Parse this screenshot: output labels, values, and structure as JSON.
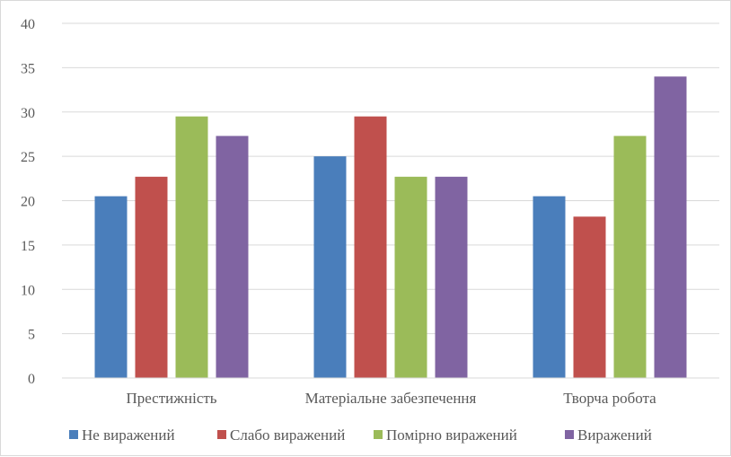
{
  "chart_data": {
    "type": "bar",
    "title": "",
    "xlabel": "",
    "ylabel": "",
    "ylim": [
      0,
      40
    ],
    "yticks": [
      0,
      5,
      10,
      15,
      20,
      25,
      30,
      35,
      40
    ],
    "grid": true,
    "legend_position": "bottom",
    "categories": [
      "Престижність",
      "Матеріальне забезпечення",
      "Творча робота"
    ],
    "series": [
      {
        "name": "Не виражений",
        "color": "#4a7ebb",
        "values": [
          20.5,
          25.0,
          20.5
        ]
      },
      {
        "name": "Слабо виражений",
        "color": "#c0504d",
        "values": [
          22.7,
          29.5,
          18.2
        ]
      },
      {
        "name": "Помірно виражений",
        "color": "#9bbb59",
        "values": [
          29.5,
          22.7,
          27.3
        ]
      },
      {
        "name": "Виражений",
        "color": "#8064a2",
        "values": [
          27.3,
          22.7,
          34.0
        ]
      }
    ]
  }
}
